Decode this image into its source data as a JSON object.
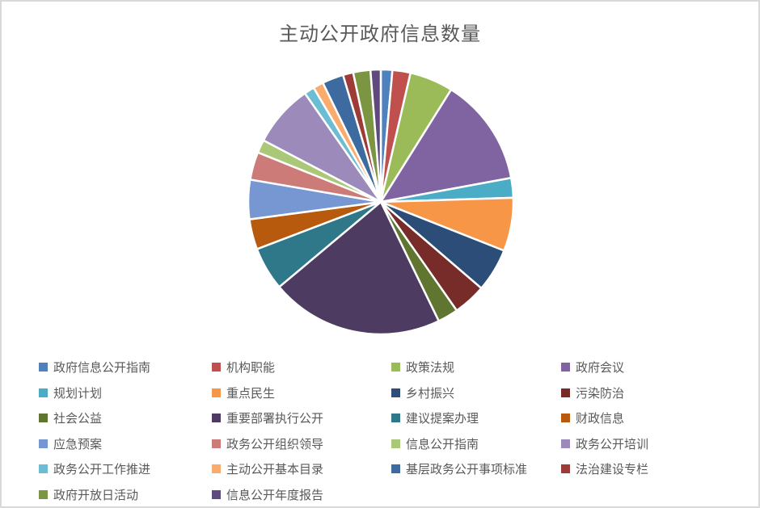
{
  "chart_data": {
    "type": "pie",
    "title": "主动公开政府信息数量",
    "legend_position": "bottom",
    "legend_columns": 4,
    "background_color": "#ffffff",
    "border_color": "#d9d9d9",
    "title_color": "#595959",
    "legend_text_color": "#595959",
    "slice_separator_color": "#ffffff",
    "values_are": "percent, estimated from slice angles (no data labels shown)",
    "start_angle_deg": 0,
    "direction": "clockwise",
    "series": [
      {
        "label": "政府信息公开指南",
        "value": 1.4,
        "color": "#4F81BD"
      },
      {
        "label": "机构职能",
        "value": 2.2,
        "color": "#C0504D"
      },
      {
        "label": "政策法规",
        "value": 5.3,
        "color": "#9BBB59"
      },
      {
        "label": "政府会议",
        "value": 13.2,
        "color": "#8064A2"
      },
      {
        "label": "规划计划",
        "value": 2.4,
        "color": "#4BACC6"
      },
      {
        "label": "重点民生",
        "value": 6.5,
        "color": "#F79646"
      },
      {
        "label": "乡村振兴",
        "value": 5.3,
        "color": "#2B4D77"
      },
      {
        "label": "污染防治",
        "value": 4.0,
        "color": "#772C2A"
      },
      {
        "label": "社会公益",
        "value": 2.5,
        "color": "#5F7530"
      },
      {
        "label": "重要部署执行公开",
        "value": 21.1,
        "color": "#4D3B62"
      },
      {
        "label": "建议提案办理",
        "value": 5.3,
        "color": "#2E7889"
      },
      {
        "label": "财政信息",
        "value": 3.7,
        "color": "#B85A0D"
      },
      {
        "label": "应急预案",
        "value": 4.8,
        "color": "#7697D1"
      },
      {
        "label": "政务公开组织领导",
        "value": 3.4,
        "color": "#CC7B79"
      },
      {
        "label": "信息公开指南",
        "value": 1.6,
        "color": "#ABC878"
      },
      {
        "label": "政务公开培训",
        "value": 7.6,
        "color": "#9C8ABB"
      },
      {
        "label": "政务公开工作推进",
        "value": 1.25,
        "color": "#6CBDD4"
      },
      {
        "label": "主动公开基本目录",
        "value": 1.25,
        "color": "#F9AC6E"
      },
      {
        "label": "基层政务公开事项标准",
        "value": 2.6,
        "color": "#3D6A9F"
      },
      {
        "label": "法治建设专栏",
        "value": 1.25,
        "color": "#9C3B38"
      },
      {
        "label": "政府开放日活动",
        "value": 2.1,
        "color": "#7B9542"
      },
      {
        "label": "信息公开年度报告",
        "value": 1.25,
        "color": "#5E4A7D"
      }
    ]
  }
}
